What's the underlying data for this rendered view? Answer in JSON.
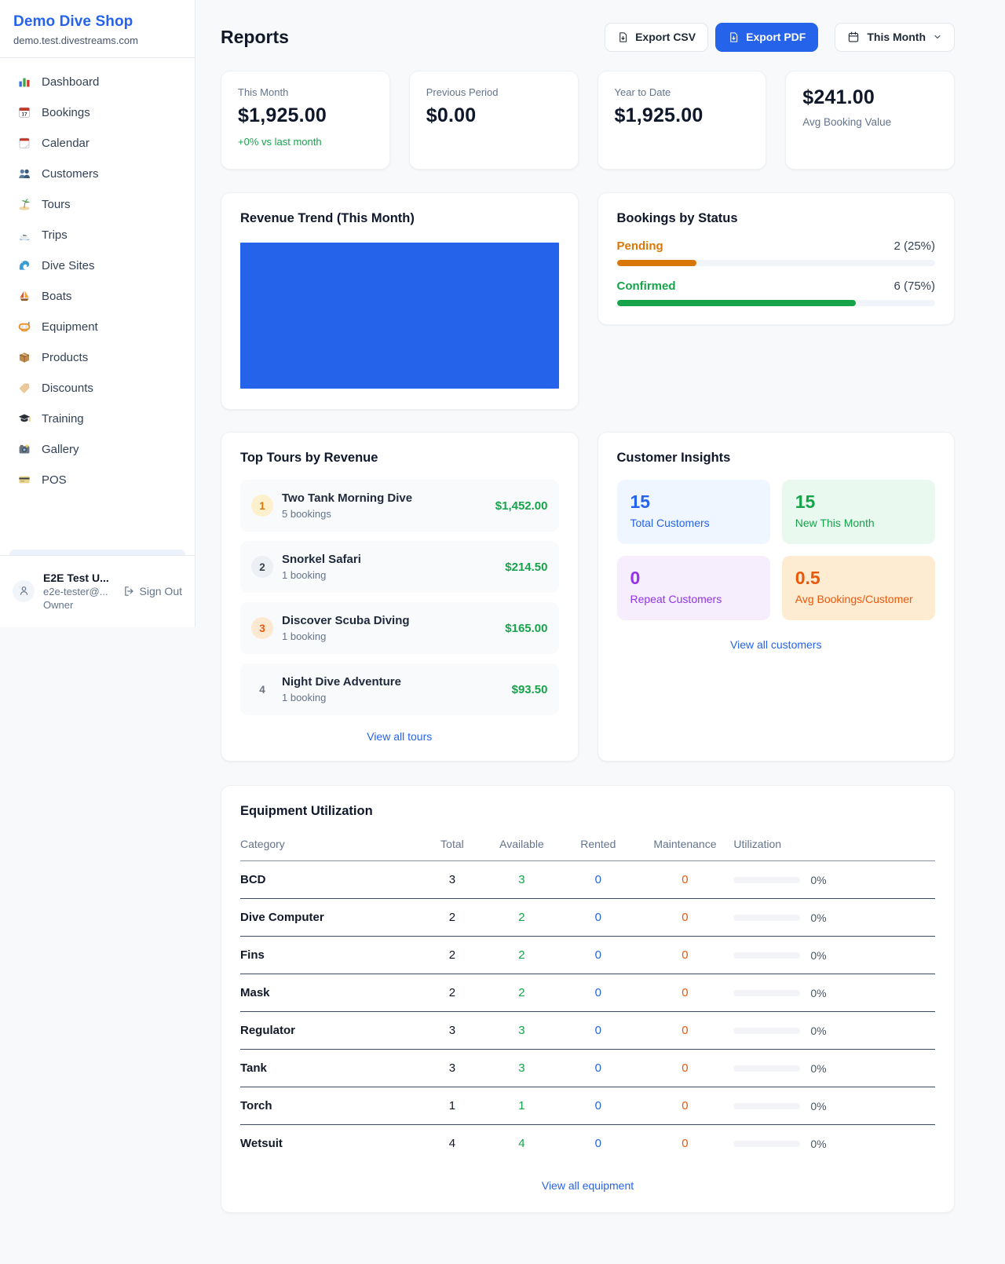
{
  "colors": {
    "accent": "#2563eb",
    "positive": "#16a34a",
    "pending": "#d97706",
    "maintenance": "#ea580c",
    "repeat": "#9333ea"
  },
  "sidebar": {
    "shop_name": "Demo Dive Shop",
    "domain": "demo.test.divestreams.com",
    "items": [
      {
        "label": "Dashboard",
        "icon": "dashboard-icon"
      },
      {
        "label": "Bookings",
        "icon": "bookings-calendar-icon"
      },
      {
        "label": "Calendar",
        "icon": "calendar-icon"
      },
      {
        "label": "Customers",
        "icon": "customers-icon"
      },
      {
        "label": "Tours",
        "icon": "palm-island-icon"
      },
      {
        "label": "Trips",
        "icon": "speedboat-icon"
      },
      {
        "label": "Dive Sites",
        "icon": "wave-icon"
      },
      {
        "label": "Boats",
        "icon": "sailboat-icon"
      },
      {
        "label": "Equipment",
        "icon": "dive-mask-icon"
      },
      {
        "label": "Products",
        "icon": "package-icon"
      },
      {
        "label": "Discounts",
        "icon": "tag-icon"
      },
      {
        "label": "Training",
        "icon": "graduation-cap-icon"
      },
      {
        "label": "Gallery",
        "icon": "camera-icon"
      },
      {
        "label": "POS",
        "icon": "credit-card-icon"
      }
    ],
    "user": {
      "name": "E2E Test U...",
      "email": "e2e-tester@...",
      "role": "Owner",
      "sign_out_label": "Sign Out"
    }
  },
  "header": {
    "title": "Reports",
    "export_csv_label": "Export CSV",
    "export_pdf_label": "Export PDF",
    "period_label": "This Month"
  },
  "stats": [
    {
      "label": "This Month",
      "value": "$1,925.00",
      "delta": "+0% vs last month"
    },
    {
      "label": "Previous Period",
      "value": "$0.00"
    },
    {
      "label": "Year to Date",
      "value": "$1,925.00"
    },
    {
      "label": "Avg Booking Value",
      "value": "$241.00"
    }
  ],
  "revenue_trend": {
    "title": "Revenue Trend (This Month)",
    "chart": {
      "type": "bar",
      "fill_pct": 100,
      "color": "#2563eb"
    }
  },
  "bookings_by_status": {
    "title": "Bookings by Status",
    "items": [
      {
        "label": "Pending",
        "count": "2 (25%)",
        "pct": 25
      },
      {
        "label": "Confirmed",
        "count": "6 (75%)",
        "pct": 75
      }
    ]
  },
  "top_tours": {
    "title": "Top Tours by Revenue",
    "items": [
      {
        "rank": "1",
        "name": "Two Tank Morning Dive",
        "bookings": "5 bookings",
        "revenue": "$1,452.00"
      },
      {
        "rank": "2",
        "name": "Snorkel Safari",
        "bookings": "1 booking",
        "revenue": "$214.50"
      },
      {
        "rank": "3",
        "name": "Discover Scuba Diving",
        "bookings": "1 booking",
        "revenue": "$165.00"
      },
      {
        "rank": "4",
        "name": "Night Dive Adventure",
        "bookings": "1 booking",
        "revenue": "$93.50"
      }
    ],
    "view_all": "View all tours"
  },
  "customer_insights": {
    "title": "Customer Insights",
    "tiles": [
      {
        "value": "15",
        "label": "Total Customers"
      },
      {
        "value": "15",
        "label": "New This Month"
      },
      {
        "value": "0",
        "label": "Repeat Customers"
      },
      {
        "value": "0.5",
        "label": "Avg Bookings/Customer"
      }
    ],
    "view_all": "View all customers"
  },
  "equipment": {
    "title": "Equipment Utilization",
    "columns": [
      "Category",
      "Total",
      "Available",
      "Rented",
      "Maintenance",
      "Utilization"
    ],
    "rows": [
      {
        "category": "BCD",
        "total": "3",
        "available": "3",
        "rented": "0",
        "maintenance": "0",
        "utilization_pct": 0,
        "utilization_label": "0%"
      },
      {
        "category": "Dive Computer",
        "total": "2",
        "available": "2",
        "rented": "0",
        "maintenance": "0",
        "utilization_pct": 0,
        "utilization_label": "0%"
      },
      {
        "category": "Fins",
        "total": "2",
        "available": "2",
        "rented": "0",
        "maintenance": "0",
        "utilization_pct": 0,
        "utilization_label": "0%"
      },
      {
        "category": "Mask",
        "total": "2",
        "available": "2",
        "rented": "0",
        "maintenance": "0",
        "utilization_pct": 0,
        "utilization_label": "0%"
      },
      {
        "category": "Regulator",
        "total": "3",
        "available": "3",
        "rented": "0",
        "maintenance": "0",
        "utilization_pct": 0,
        "utilization_label": "0%"
      },
      {
        "category": "Tank",
        "total": "3",
        "available": "3",
        "rented": "0",
        "maintenance": "0",
        "utilization_pct": 0,
        "utilization_label": "0%"
      },
      {
        "category": "Torch",
        "total": "1",
        "available": "1",
        "rented": "0",
        "maintenance": "0",
        "utilization_pct": 0,
        "utilization_label": "0%"
      },
      {
        "category": "Wetsuit",
        "total": "4",
        "available": "4",
        "rented": "0",
        "maintenance": "0",
        "utilization_pct": 0,
        "utilization_label": "0%"
      }
    ],
    "view_all": "View all equipment"
  }
}
